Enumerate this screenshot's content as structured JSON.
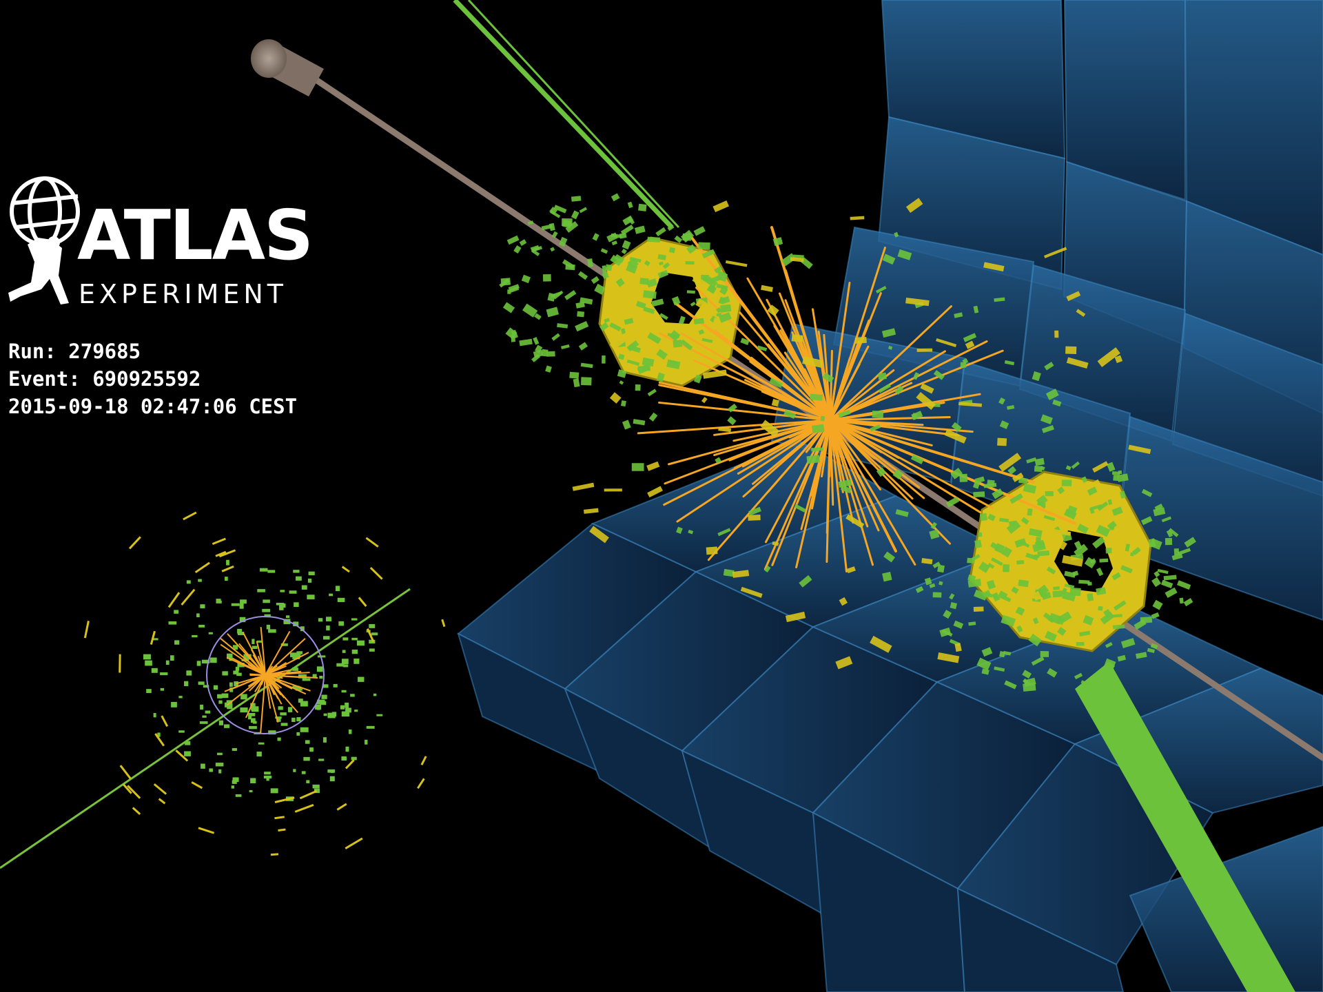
{
  "logo": {
    "title": "ATLAS",
    "subtitle": "EXPERIMENT"
  },
  "event": {
    "run": "Run: 279685",
    "event": "Event: 690925592",
    "timestamp": "2015-09-18 02:47:06 CEST"
  },
  "colors": {
    "background": "#000000",
    "muon_chamber": "#1e4a78",
    "muon_chamber_edge": "#2f7ab0",
    "track": "#f5a623",
    "calorimeter_green": "#6cc23a",
    "calorimeter_yellow": "#d8c21a",
    "beampipe": "#8c7a6e",
    "text": "#ffffff"
  }
}
